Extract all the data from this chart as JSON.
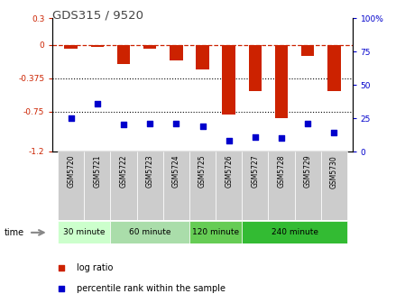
{
  "title": "GDS315 / 9520",
  "samples": [
    "GSM5720",
    "GSM5721",
    "GSM5722",
    "GSM5723",
    "GSM5724",
    "GSM5725",
    "GSM5726",
    "GSM5727",
    "GSM5728",
    "GSM5729",
    "GSM5730"
  ],
  "log_ratio": [
    -0.04,
    -0.02,
    -0.22,
    -0.04,
    -0.18,
    -0.28,
    -0.78,
    -0.52,
    -0.82,
    -0.12,
    -0.52
  ],
  "percentile_rank": [
    25,
    36,
    20,
    21,
    21,
    19,
    8,
    11,
    10,
    21,
    14
  ],
  "ylim_left": [
    -1.2,
    0.3
  ],
  "ylim_right": [
    0,
    100
  ],
  "yticks_left": [
    0.3,
    0,
    -0.375,
    -0.75,
    -1.2
  ],
  "yticks_left_labels": [
    "0.3",
    "0",
    "-0.375",
    "-0.75",
    "-1.2"
  ],
  "yticks_right": [
    100,
    75,
    50,
    25,
    0
  ],
  "yticks_right_labels": [
    "100%",
    "75",
    "50",
    "25",
    "0"
  ],
  "bar_color": "#cc2200",
  "scatter_color": "#0000cc",
  "dashed_line_color": "#cc2200",
  "dotted_line_color": "#000000",
  "group_starts": [
    0,
    2,
    5,
    7
  ],
  "group_ends": [
    2,
    5,
    7,
    11
  ],
  "group_labels": [
    "30 minute",
    "60 minute",
    "120 minute",
    "240 minute"
  ],
  "group_colors": [
    "#ccffcc",
    "#aaddaa",
    "#66cc55",
    "#33bb33"
  ],
  "sample_box_color": "#cccccc",
  "xlabel_time": "time",
  "legend_log_ratio": "log ratio",
  "legend_percentile": "percentile rank within the sample",
  "title_color": "#444444",
  "left_tick_color": "#cc2200",
  "right_tick_color": "#0000cc",
  "background_color": "#ffffff"
}
